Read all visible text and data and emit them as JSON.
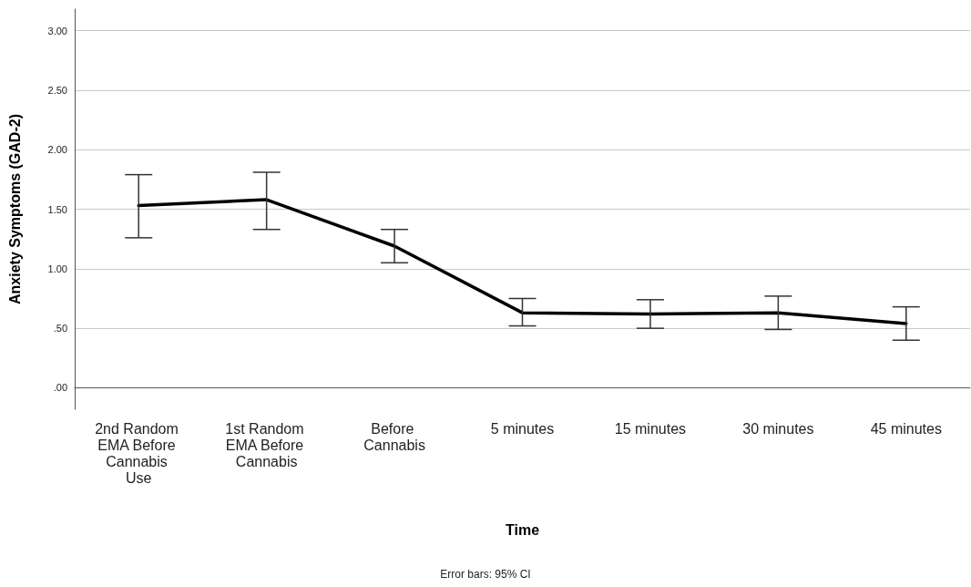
{
  "chart_data": {
    "type": "line",
    "xlabel": "Time",
    "ylabel": "Anxiety Symptoms (GAD-2)",
    "categories": [
      "2nd Random EMA Before Cannabis Use",
      "1st Random EMA Before Cannabis",
      "Before Cannabis",
      "5 minutes",
      "15 minutes",
      "30 minutes",
      "45 minutes"
    ],
    "series": [
      {
        "color": "#000000",
        "values": [
          1.53,
          1.58,
          1.19,
          0.63,
          0.62,
          0.63,
          0.54
        ],
        "errors": [
          [
            1.26,
            1.79
          ],
          [
            1.33,
            1.81
          ],
          [
            1.05,
            1.33
          ],
          [
            0.52,
            0.75
          ],
          [
            0.5,
            0.74
          ],
          [
            0.49,
            0.77
          ],
          [
            0.4,
            0.68
          ]
        ]
      }
    ],
    "ylim": [
      -0.18,
      3.18
    ],
    "yticks": [
      {
        "value": 0,
        "label": ".00"
      },
      {
        "value": 0.5,
        "label": ".50"
      },
      {
        "value": 1,
        "label": "1.00"
      },
      {
        "value": 1.5,
        "label": "1.50"
      },
      {
        "value": 2,
        "label": "2.00"
      },
      {
        "value": 2.5,
        "label": "2.50"
      },
      {
        "value": 3,
        "label": "3.00"
      }
    ],
    "grid": "y",
    "marker": "none",
    "line_style": "solid",
    "annotations": [
      "Error bars: 95% CI"
    ]
  }
}
